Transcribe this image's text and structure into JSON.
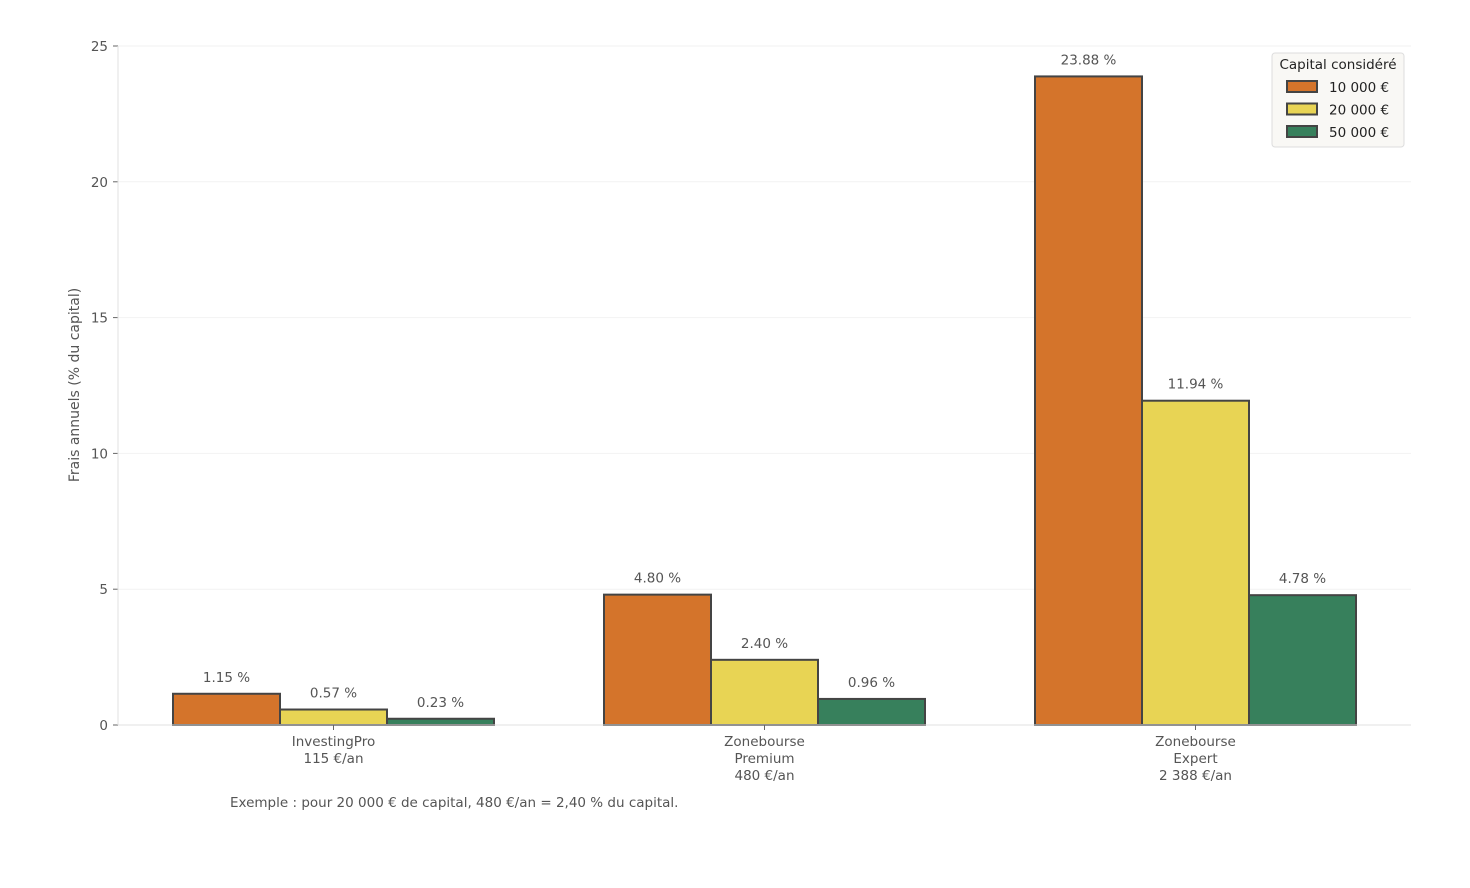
{
  "chart_data": {
    "type": "bar",
    "title": "",
    "xlabel": "",
    "ylabel": "Frais annuels (% du capital)",
    "ylim": [
      0,
      25
    ],
    "yticks": [
      0,
      5,
      10,
      15,
      20,
      25
    ],
    "grid": true,
    "categories": [
      [
        "InvestingPro",
        "115 €/an"
      ],
      [
        "Zonebourse",
        "Premium",
        "480 €/an"
      ],
      [
        "Zonebourse",
        "Expert",
        "2 388 €/an"
      ]
    ],
    "legend": {
      "title": "Capital considéré",
      "placement": "top-right"
    },
    "series": [
      {
        "name": "10 000 €",
        "color": "#d4742b",
        "values": [
          1.15,
          4.8,
          23.88
        ],
        "labels": [
          "1.15 %",
          "4.80 %",
          "23.88 %"
        ]
      },
      {
        "name": "20 000 €",
        "color": "#e8d454",
        "values": [
          0.57,
          2.4,
          11.94
        ],
        "labels": [
          "0.57 %",
          "2.40 %",
          "11.94 %"
        ]
      },
      {
        "name": "50 000 €",
        "color": "#37805c",
        "values": [
          0.23,
          0.96,
          4.78
        ],
        "labels": [
          "0.23 %",
          "0.96 %",
          "4.78 %"
        ]
      }
    ],
    "annotation": "Exemple : pour 20 000 € de capital, 480 €/an = 2,40 % du capital."
  }
}
